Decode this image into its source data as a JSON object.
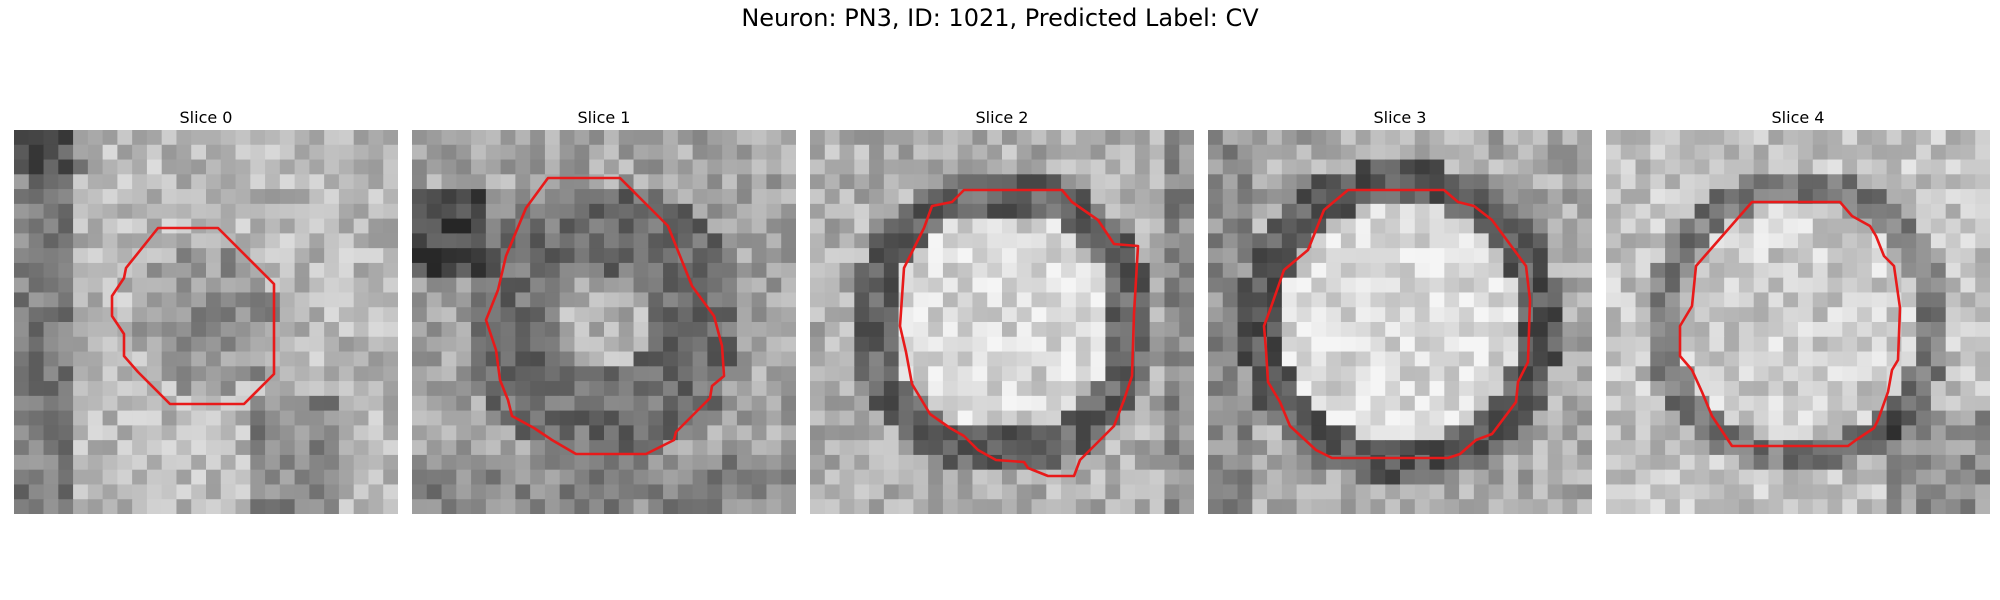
{
  "figure": {
    "title": "Neuron: PN3, ID: 1021, Predicted Label: CV",
    "contour_color": "#e81a1a"
  },
  "panels": [
    {
      "title": "Slice 0"
    },
    {
      "title": "Slice 1"
    },
    {
      "title": "Slice 2"
    },
    {
      "title": "Slice 3"
    },
    {
      "title": "Slice 4"
    }
  ]
}
